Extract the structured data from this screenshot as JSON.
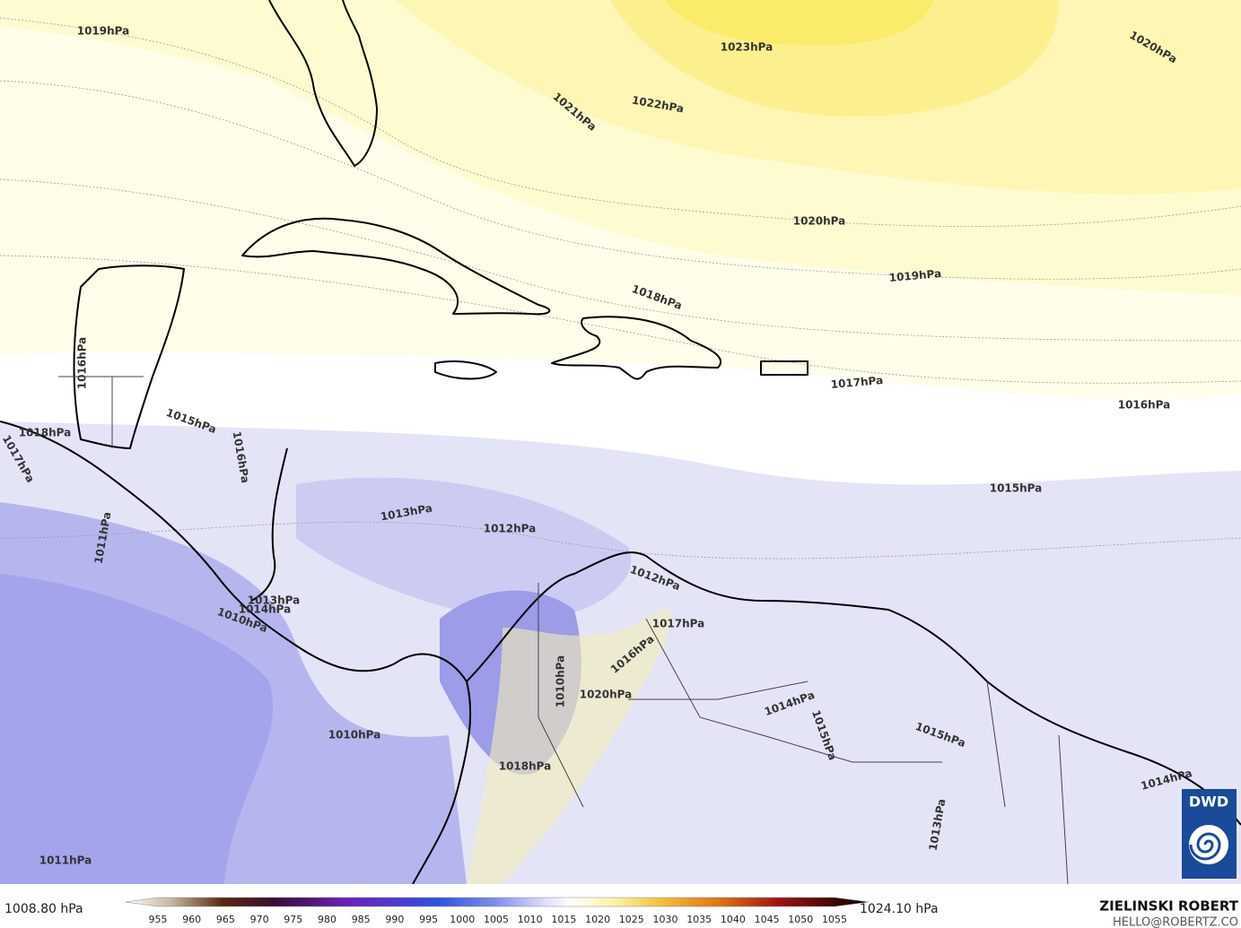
{
  "map": {
    "isobar_labels": [
      "1019hPa",
      "1023hPa",
      "1020hPa",
      "1022hPa",
      "1021hPa",
      "1020hPa",
      "1019hPa",
      "1018hPa",
      "1017hPa",
      "1016hPa",
      "1016hPa",
      "1015hPa",
      "1018hPa",
      "1016hPa",
      "1017hPa",
      "1015hPa",
      "1013hPa",
      "1012hPa",
      "1011hPa",
      "1012hPa",
      "1017hPa",
      "1013hPa",
      "1014hPa",
      "1010hPa",
      "1016hPa",
      "1010hPa",
      "1020hPa",
      "1014hPa",
      "1015hPa",
      "1015hPa",
      "1010hPa",
      "1018hPa",
      "1014hPa",
      "1013hPa",
      "1011hPa"
    ]
  },
  "colorbar": {
    "min_label": "1008.80 hPa",
    "max_label": "1024.10 hPa",
    "ticks": [
      955,
      960,
      965,
      970,
      975,
      980,
      985,
      990,
      995,
      1000,
      1005,
      1010,
      1015,
      1020,
      1025,
      1030,
      1035,
      1040,
      1045,
      1050,
      1055
    ]
  },
  "credit": {
    "name": "ZIELINSKI ROBERT",
    "email": "HELLO@ROBERTZ.CO"
  },
  "logo": "DWD"
}
